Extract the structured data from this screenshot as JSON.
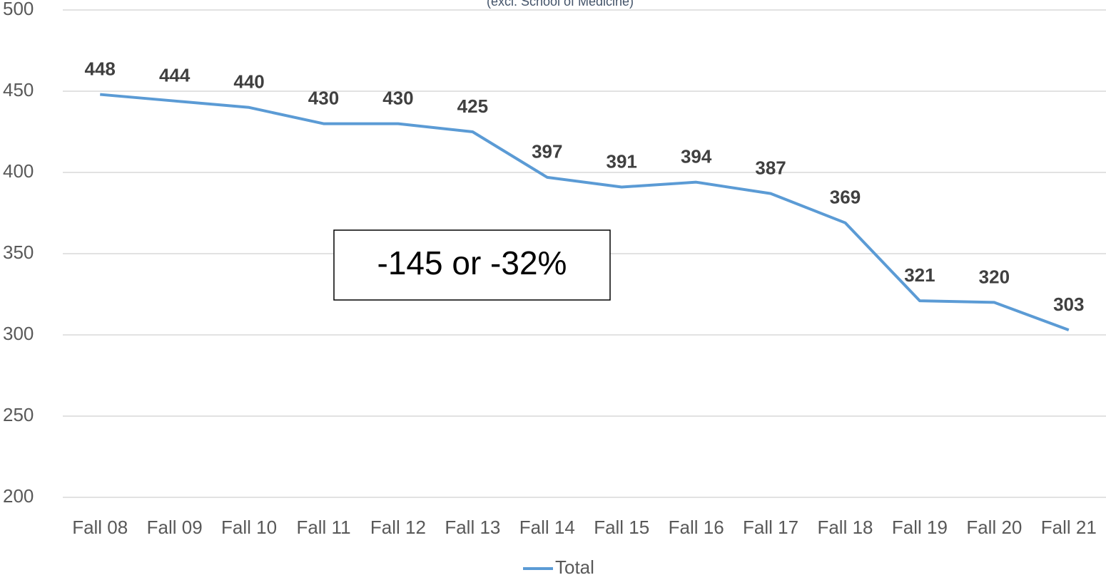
{
  "chart_data": {
    "type": "line",
    "subtitle": "(excl. School of Medicine)",
    "categories": [
      "Fall 08",
      "Fall 09",
      "Fall 10",
      "Fall 11",
      "Fall 12",
      "Fall 13",
      "Fall 14",
      "Fall 15",
      "Fall 16",
      "Fall 17",
      "Fall 18",
      "Fall 19",
      "Fall 20",
      "Fall 21"
    ],
    "series": [
      {
        "name": "Total",
        "color": "#5b9bd5",
        "values": [
          448,
          444,
          440,
          430,
          430,
          425,
          397,
          391,
          394,
          387,
          369,
          321,
          320,
          303
        ]
      }
    ],
    "ylim": [
      200,
      500
    ],
    "yticks": [
      200,
      250,
      300,
      350,
      400,
      450,
      500
    ],
    "grid": true,
    "legend": "bottom",
    "annotation": "-145 or -32%"
  }
}
